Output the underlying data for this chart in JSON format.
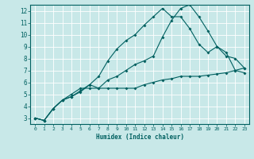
{
  "xlabel": "Humidex (Indice chaleur)",
  "ylabel": "",
  "bg_color": "#c8e8e8",
  "line_color": "#006060",
  "grid_color": "#ffffff",
  "xlim": [
    -0.5,
    23.5
  ],
  "ylim": [
    2.5,
    12.5
  ],
  "xticks": [
    0,
    1,
    2,
    3,
    4,
    5,
    6,
    7,
    8,
    9,
    10,
    11,
    12,
    13,
    14,
    15,
    16,
    17,
    18,
    19,
    20,
    21,
    22,
    23
  ],
  "yticks": [
    3,
    4,
    5,
    6,
    7,
    8,
    9,
    10,
    11,
    12
  ],
  "line1_x": [
    0,
    1,
    2,
    3,
    4,
    5,
    6,
    7,
    8,
    9,
    10,
    11,
    12,
    13,
    14,
    15,
    16,
    17,
    18,
    19,
    20,
    21,
    22,
    23
  ],
  "line1_y": [
    3.0,
    2.8,
    3.8,
    4.5,
    4.8,
    5.3,
    5.8,
    6.5,
    7.8,
    8.8,
    9.5,
    10.0,
    10.8,
    11.5,
    12.2,
    11.5,
    11.5,
    10.5,
    9.2,
    8.5,
    9.0,
    8.5,
    7.0,
    6.8
  ],
  "line2_x": [
    0,
    1,
    2,
    3,
    4,
    5,
    6,
    7,
    8,
    9,
    10,
    11,
    12,
    13,
    14,
    15,
    16,
    17,
    18,
    19,
    20,
    21,
    22,
    23
  ],
  "line2_y": [
    3.0,
    2.8,
    3.8,
    4.5,
    5.0,
    5.5,
    5.5,
    5.5,
    6.2,
    6.5,
    7.0,
    7.5,
    7.8,
    8.2,
    9.8,
    11.2,
    12.2,
    12.5,
    11.5,
    10.3,
    9.0,
    8.2,
    8.0,
    7.2
  ],
  "line3_x": [
    0,
    1,
    2,
    3,
    4,
    5,
    6,
    7,
    8,
    9,
    10,
    11,
    12,
    13,
    14,
    15,
    16,
    17,
    18,
    19,
    20,
    21,
    22,
    23
  ],
  "line3_y": [
    3.0,
    2.8,
    3.8,
    4.5,
    4.8,
    5.2,
    5.8,
    5.5,
    5.5,
    5.5,
    5.5,
    5.5,
    5.8,
    6.0,
    6.2,
    6.3,
    6.5,
    6.5,
    6.5,
    6.6,
    6.7,
    6.8,
    7.0,
    7.2
  ],
  "marker": "D",
  "markersize": 2.0,
  "linewidth": 0.8
}
